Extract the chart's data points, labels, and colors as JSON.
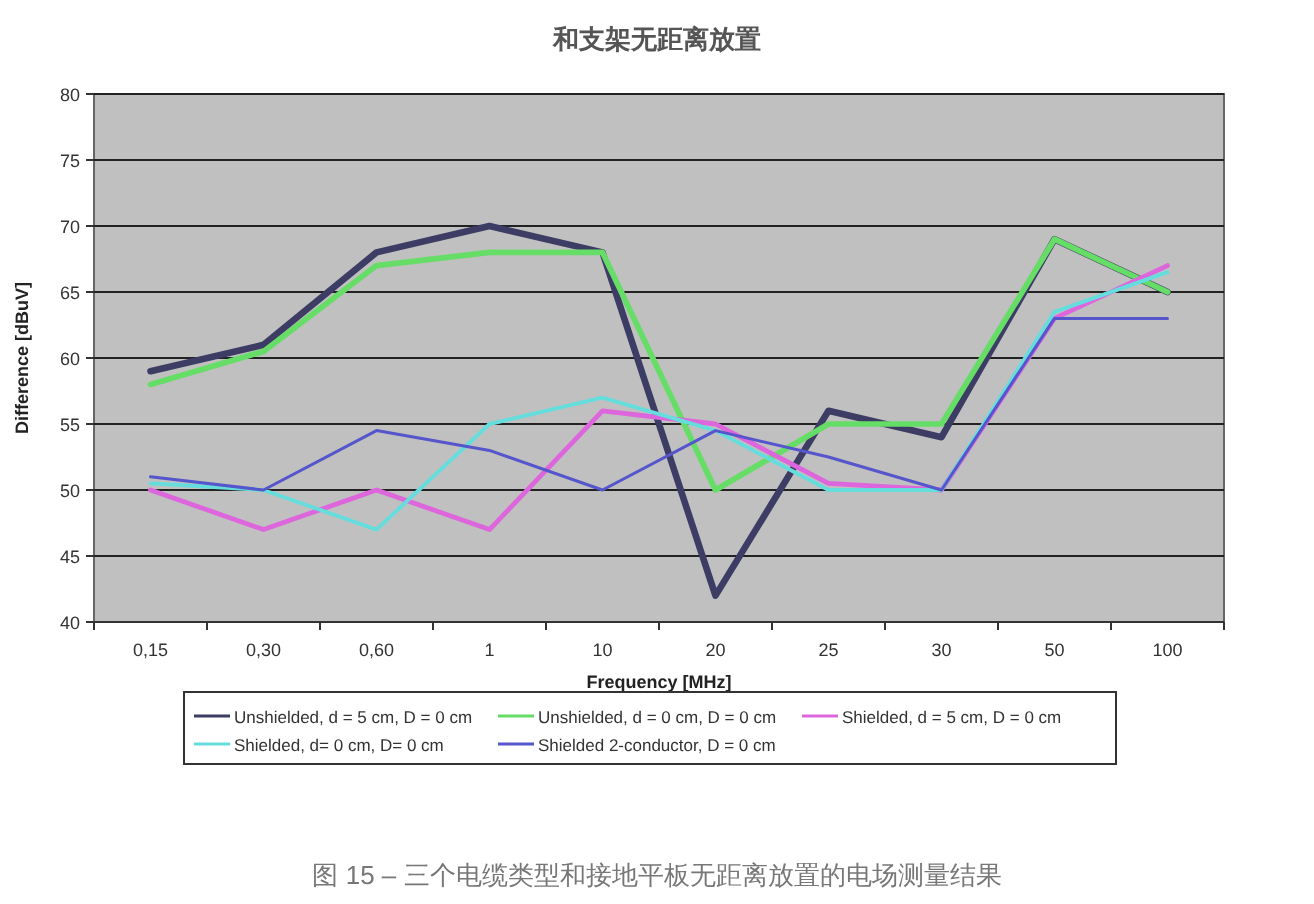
{
  "chart_data": {
    "type": "line",
    "title": "和支架无距离放置",
    "xlabel": "Frequency [MHz]",
    "ylabel": "Difference [dBuV]",
    "categories": [
      "0,15",
      "0,30",
      "0,60",
      "1",
      "10",
      "20",
      "25",
      "30",
      "50",
      "100"
    ],
    "series": [
      {
        "name": "Unshielded, d = 5 cm, D = 0 cm",
        "color": "#3c3c64",
        "values": [
          59,
          61,
          68,
          70,
          68,
          42,
          56,
          54,
          69,
          65
        ]
      },
      {
        "name": "Unshielded, d = 0 cm, D = 0 cm",
        "color": "#66dd66",
        "values": [
          58,
          60.5,
          67,
          68,
          68,
          50,
          55,
          55,
          69,
          65
        ]
      },
      {
        "name": "Shielded, d = 5 cm, D = 0 cm",
        "color": "#dd66dd",
        "values": [
          50,
          47,
          50,
          47,
          56,
          55,
          50.5,
          50,
          63,
          67
        ]
      },
      {
        "name": "Shielded, d= 0 cm, D= 0 cm",
        "color": "#66dddd",
        "values": [
          50.5,
          50,
          47,
          55,
          57,
          54.5,
          50,
          50,
          63.5,
          66.5
        ]
      },
      {
        "name": "Shielded 2-conductor, D = 0 cm",
        "color": "#5555cc",
        "values": [
          51,
          50,
          54.5,
          53,
          50,
          54.5,
          52.5,
          50,
          63,
          63
        ]
      }
    ],
    "ylim": [
      40,
      80
    ],
    "yticks": [
      40,
      45,
      50,
      55,
      60,
      65,
      70,
      75,
      80
    ],
    "grid": "y",
    "legend": "bottom",
    "marker": "none",
    "line_style": "solid",
    "annotations": [
      "图 15 – 三个电缆类型和接地平板无距离放置的电场测量结果"
    ]
  }
}
